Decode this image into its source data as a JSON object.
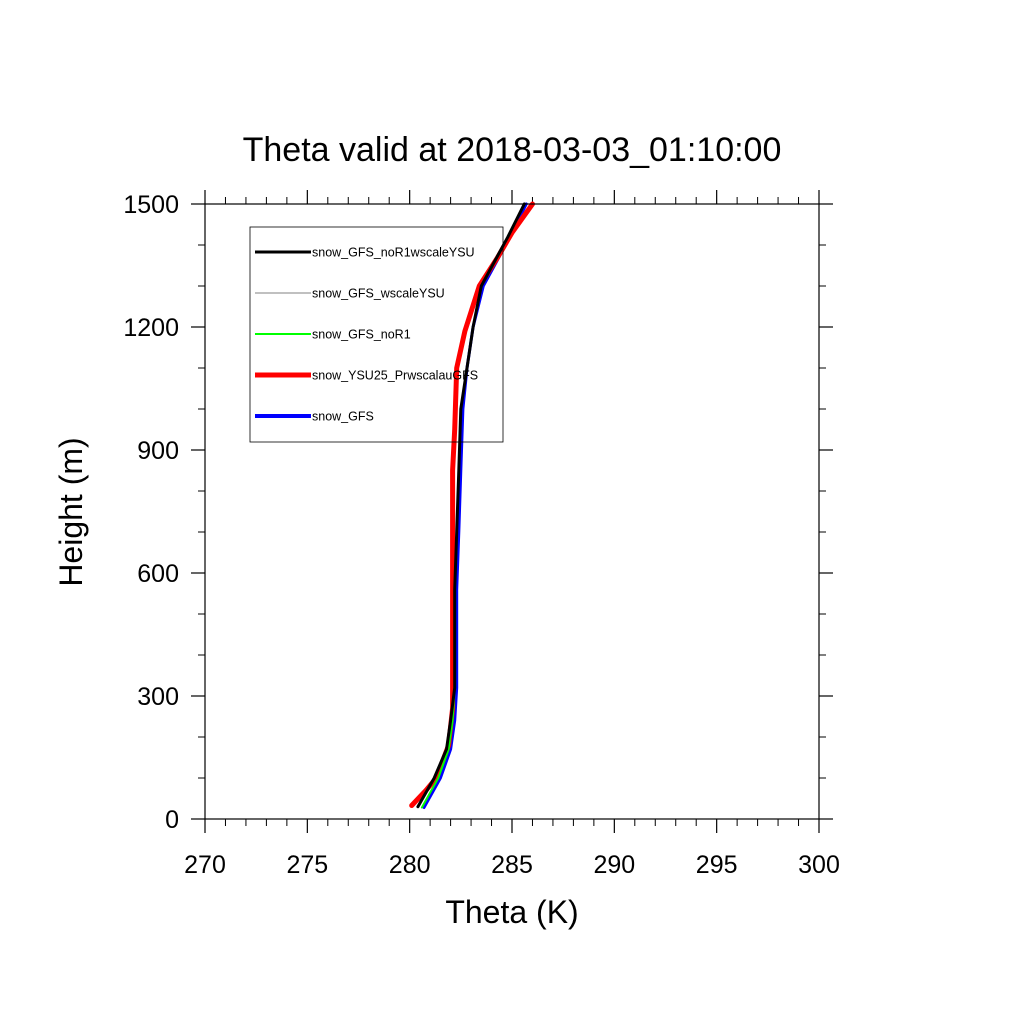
{
  "chart_data": {
    "type": "line",
    "title": "Theta valid at 2018-03-03_01:10:00",
    "xlabel": "Theta (K)",
    "ylabel": "Height (m)",
    "xlim": [
      270,
      300
    ],
    "ylim": [
      0,
      1500
    ],
    "x_ticks": [
      "270",
      "275",
      "280",
      "285",
      "290",
      "295",
      "300"
    ],
    "y_ticks": [
      "0",
      "300",
      "600",
      "900",
      "1200",
      "1500"
    ],
    "grid": false,
    "legend_position": "top-left",
    "series": [
      {
        "name": "snow_GFS",
        "color": "#0000ff",
        "points": [
          [
            280.7,
            28
          ],
          [
            281.5,
            100
          ],
          [
            282.0,
            170
          ],
          [
            282.2,
            240
          ],
          [
            282.3,
            320
          ],
          [
            282.3,
            420
          ],
          [
            282.3,
            560
          ],
          [
            282.4,
            700
          ],
          [
            282.5,
            850
          ],
          [
            282.6,
            1000
          ],
          [
            282.8,
            1100
          ],
          [
            283.1,
            1200
          ],
          [
            283.6,
            1300
          ],
          [
            284.9,
            1420
          ],
          [
            285.7,
            1500
          ]
        ]
      },
      {
        "name": "snow_YSU25_PrwscalauGFS",
        "color": "#ff0000",
        "points": [
          [
            280.1,
            33
          ],
          [
            280.8,
            70
          ],
          [
            281.3,
            100
          ],
          [
            281.9,
            180
          ],
          [
            282.1,
            270
          ],
          [
            282.1,
            400
          ],
          [
            282.1,
            560
          ],
          [
            282.1,
            700
          ],
          [
            282.1,
            850
          ],
          [
            282.2,
            950
          ],
          [
            282.3,
            1100
          ],
          [
            282.7,
            1190
          ],
          [
            283.4,
            1300
          ],
          [
            284.3,
            1370
          ],
          [
            285.0,
            1430
          ],
          [
            286.0,
            1500
          ]
        ]
      },
      {
        "name": "snow_GFS_noR1",
        "color": "#00ff00",
        "points": [
          [
            280.6,
            28
          ],
          [
            281.4,
            100
          ],
          [
            281.9,
            170
          ],
          [
            282.1,
            240
          ],
          [
            282.2,
            320
          ],
          [
            282.2,
            420
          ],
          [
            282.2,
            560
          ],
          [
            282.3,
            700
          ],
          [
            282.4,
            850
          ],
          [
            282.5,
            1000
          ],
          [
            282.8,
            1100
          ],
          [
            283.1,
            1200
          ],
          [
            283.5,
            1300
          ],
          [
            284.8,
            1420
          ],
          [
            285.6,
            1500
          ]
        ]
      },
      {
        "name": "snow_GFS_wscaleYSU",
        "color": "#c0c0c0",
        "points": [
          [
            280.4,
            30
          ],
          [
            281.2,
            100
          ],
          [
            281.8,
            170
          ],
          [
            282.0,
            240
          ],
          [
            282.2,
            320
          ],
          [
            282.2,
            420
          ],
          [
            282.2,
            560
          ],
          [
            282.3,
            700
          ],
          [
            282.4,
            850
          ],
          [
            282.5,
            1000
          ],
          [
            282.8,
            1100
          ],
          [
            283.1,
            1200
          ],
          [
            283.5,
            1300
          ],
          [
            284.8,
            1420
          ],
          [
            285.6,
            1500
          ]
        ]
      },
      {
        "name": "snow_GFS_noR1wscaleYSU",
        "color": "#000000",
        "points": [
          [
            280.4,
            30
          ],
          [
            281.2,
            100
          ],
          [
            281.8,
            170
          ],
          [
            282.0,
            240
          ],
          [
            282.2,
            320
          ],
          [
            282.2,
            420
          ],
          [
            282.2,
            560
          ],
          [
            282.3,
            700
          ],
          [
            282.4,
            850
          ],
          [
            282.5,
            1000
          ],
          [
            282.8,
            1100
          ],
          [
            283.1,
            1200
          ],
          [
            283.5,
            1300
          ],
          [
            284.8,
            1420
          ],
          [
            285.6,
            1500
          ]
        ]
      }
    ],
    "legend_order": [
      "snow_GFS_noR1wscaleYSU",
      "snow_GFS_wscaleYSU",
      "snow_GFS_noR1",
      "snow_YSU25_PrwscalauGFS",
      "snow_GFS"
    ]
  }
}
